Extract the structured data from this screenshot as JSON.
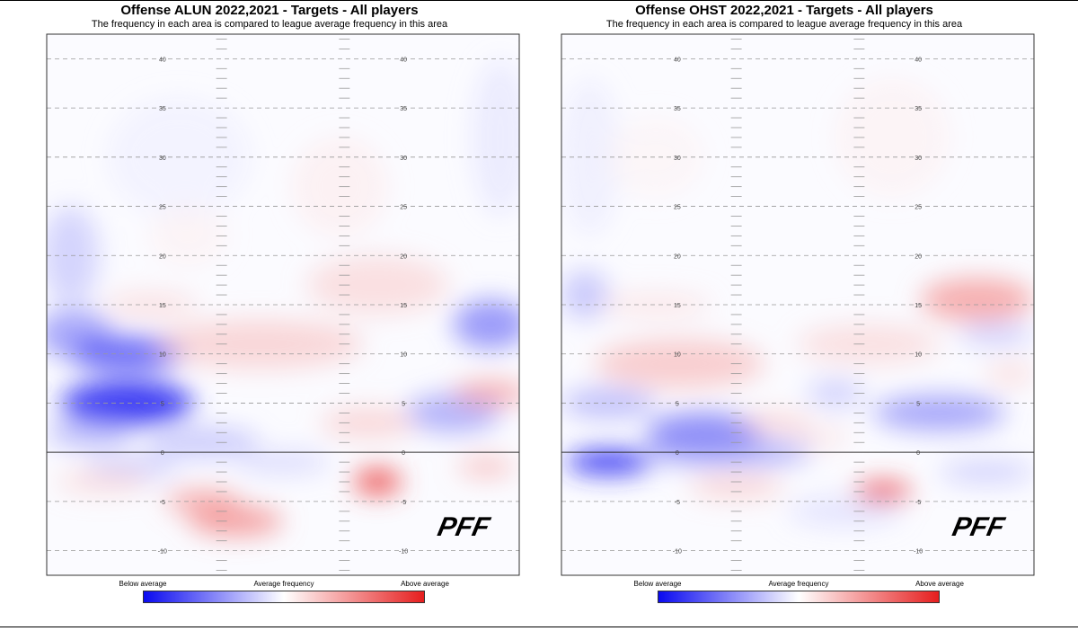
{
  "chart_data": [
    {
      "type": "heatmap",
      "title": "Offense ALUN 2022,2021 - Targets - All players",
      "subtitle": "The frequency in each area is compared to league average frequency in this area",
      "y_ticks": [
        40,
        35,
        30,
        25,
        20,
        15,
        10,
        5,
        0,
        -5,
        -10
      ],
      "ylim": [
        -12.5,
        42.5
      ],
      "legend": {
        "low": "Below average",
        "mid": "Average frequency",
        "high": "Above average"
      },
      "logo": "PFF",
      "hotspots": [
        {
          "x": 0.06,
          "y": 12,
          "rx": 0.08,
          "ry": 2.5,
          "value": -0.5
        },
        {
          "x": 0.17,
          "y": 10,
          "rx": 0.12,
          "ry": 1.8,
          "value": -0.7
        },
        {
          "x": 0.17,
          "y": 5,
          "rx": 0.14,
          "ry": 2.2,
          "value": -0.85
        },
        {
          "x": 0.09,
          "y": 2,
          "rx": 0.09,
          "ry": 1.5,
          "value": -0.4
        },
        {
          "x": 0.05,
          "y": 20,
          "rx": 0.06,
          "ry": 5,
          "value": -0.3
        },
        {
          "x": 0.94,
          "y": 13,
          "rx": 0.08,
          "ry": 2.5,
          "value": -0.55
        },
        {
          "x": 0.86,
          "y": 4,
          "rx": 0.1,
          "ry": 2,
          "value": -0.45
        },
        {
          "x": 0.33,
          "y": 1,
          "rx": 0.12,
          "ry": 1.5,
          "value": -0.35
        },
        {
          "x": 0.18,
          "y": -1.5,
          "rx": 0.1,
          "ry": 1.2,
          "value": -0.3
        },
        {
          "x": 0.5,
          "y": -1,
          "rx": 0.1,
          "ry": 1.2,
          "value": -0.25
        },
        {
          "x": 0.96,
          "y": 32,
          "rx": 0.06,
          "ry": 8,
          "value": -0.15
        },
        {
          "x": 0.28,
          "y": 30,
          "rx": 0.15,
          "ry": 6,
          "value": -0.1
        },
        {
          "x": 0.7,
          "y": -3,
          "rx": 0.05,
          "ry": 1.3,
          "value": 0.8
        },
        {
          "x": 0.4,
          "y": -7,
          "rx": 0.1,
          "ry": 1.5,
          "value": 0.55
        },
        {
          "x": 0.33,
          "y": -5,
          "rx": 0.08,
          "ry": 1.2,
          "value": 0.5
        },
        {
          "x": 0.12,
          "y": -3,
          "rx": 0.1,
          "ry": 1.2,
          "value": 0.25
        },
        {
          "x": 0.94,
          "y": 6,
          "rx": 0.08,
          "ry": 1.2,
          "value": 0.5
        },
        {
          "x": 0.93,
          "y": -1.5,
          "rx": 0.06,
          "ry": 1,
          "value": 0.4
        },
        {
          "x": 0.45,
          "y": 11,
          "rx": 0.22,
          "ry": 2.5,
          "value": 0.3
        },
        {
          "x": 0.7,
          "y": 17,
          "rx": 0.15,
          "ry": 3,
          "value": 0.25
        },
        {
          "x": 0.68,
          "y": 3,
          "rx": 0.1,
          "ry": 1.5,
          "value": 0.3
        },
        {
          "x": 0.22,
          "y": 15,
          "rx": 0.1,
          "ry": 1.2,
          "value": 0.25
        },
        {
          "x": 0.62,
          "y": 27,
          "rx": 0.1,
          "ry": 5,
          "value": 0.12
        },
        {
          "x": 0.3,
          "y": 22,
          "rx": 0.08,
          "ry": 3,
          "value": 0.1
        }
      ]
    },
    {
      "type": "heatmap",
      "title": "Offense OHST 2022,2021 - Targets - All players",
      "subtitle": "The frequency in each area is compared to league average frequency in this area",
      "y_ticks": [
        40,
        35,
        30,
        25,
        20,
        15,
        10,
        5,
        0,
        -5,
        -10
      ],
      "ylim": [
        -12.5,
        42.5
      ],
      "legend": {
        "low": "Below average",
        "mid": "Average frequency",
        "high": "Above average"
      },
      "logo": "PFF",
      "hotspots": [
        {
          "x": 0.1,
          "y": -1,
          "rx": 0.09,
          "ry": 1.2,
          "value": -0.85
        },
        {
          "x": 0.3,
          "y": 2,
          "rx": 0.12,
          "ry": 2,
          "value": -0.6
        },
        {
          "x": 0.35,
          "y": 0,
          "rx": 0.18,
          "ry": 1.5,
          "value": -0.45
        },
        {
          "x": 0.8,
          "y": 4,
          "rx": 0.14,
          "ry": 1.8,
          "value": -0.5
        },
        {
          "x": 0.05,
          "y": 16,
          "rx": 0.05,
          "ry": 2.5,
          "value": -0.35
        },
        {
          "x": 0.1,
          "y": 5,
          "rx": 0.1,
          "ry": 1.5,
          "value": -0.4
        },
        {
          "x": 0.92,
          "y": 12,
          "rx": 0.08,
          "ry": 1.2,
          "value": -0.3
        },
        {
          "x": 0.58,
          "y": 6,
          "rx": 0.06,
          "ry": 1.5,
          "value": -0.3
        },
        {
          "x": 0.6,
          "y": -6,
          "rx": 0.12,
          "ry": 1.5,
          "value": -0.2
        },
        {
          "x": 0.9,
          "y": -2,
          "rx": 0.1,
          "ry": 1.2,
          "value": -0.3
        },
        {
          "x": 0.06,
          "y": 30,
          "rx": 0.06,
          "ry": 8,
          "value": -0.12
        },
        {
          "x": 0.68,
          "y": -4,
          "rx": 0.06,
          "ry": 0.9,
          "value": 0.85
        },
        {
          "x": 0.88,
          "y": 15.5,
          "rx": 0.12,
          "ry": 2.2,
          "value": 0.5
        },
        {
          "x": 0.25,
          "y": 9,
          "rx": 0.18,
          "ry": 2.5,
          "value": 0.35
        },
        {
          "x": 0.37,
          "y": -3.5,
          "rx": 0.1,
          "ry": 1.2,
          "value": 0.3
        },
        {
          "x": 0.45,
          "y": 3,
          "rx": 0.08,
          "ry": 1,
          "value": 0.3
        },
        {
          "x": 0.65,
          "y": 11,
          "rx": 0.15,
          "ry": 2,
          "value": 0.25
        },
        {
          "x": 0.2,
          "y": 15,
          "rx": 0.12,
          "ry": 1.2,
          "value": 0.2
        },
        {
          "x": 0.95,
          "y": 8,
          "rx": 0.05,
          "ry": 1.2,
          "value": 0.25
        },
        {
          "x": 0.55,
          "y": 1.5,
          "rx": 0.06,
          "ry": 1,
          "value": 0.2
        },
        {
          "x": 0.7,
          "y": 32,
          "rx": 0.12,
          "ry": 6,
          "value": 0.1
        },
        {
          "x": 0.2,
          "y": 30,
          "rx": 0.1,
          "ry": 4,
          "value": 0.08
        }
      ]
    }
  ]
}
